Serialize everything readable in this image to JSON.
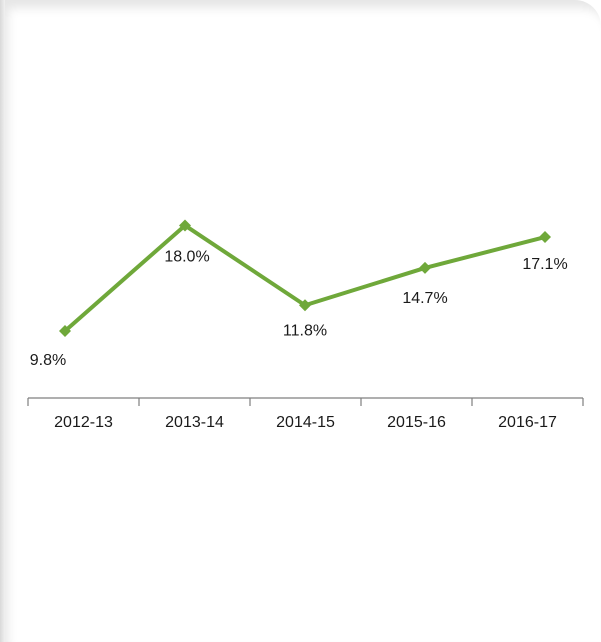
{
  "chart_data": {
    "type": "line",
    "categories": [
      "2012-13",
      "2013-14",
      "2014-15",
      "2015-16",
      "2016-17"
    ],
    "series": [
      {
        "values": [
          9.8,
          18.0,
          11.8,
          14.7,
          17.1
        ],
        "data_labels": [
          "9.8%",
          "18.0%",
          "11.8%",
          "14.7%",
          "17.1%"
        ]
      }
    ],
    "title": "",
    "xlabel": "",
    "ylabel": "",
    "grid": false,
    "legend": "none",
    "y_axis_visible": false
  },
  "colors": {
    "line": "#6fa83a",
    "marker": "#6fa83a",
    "axis": "#7f7f7f",
    "text": "#1a1a1a"
  }
}
